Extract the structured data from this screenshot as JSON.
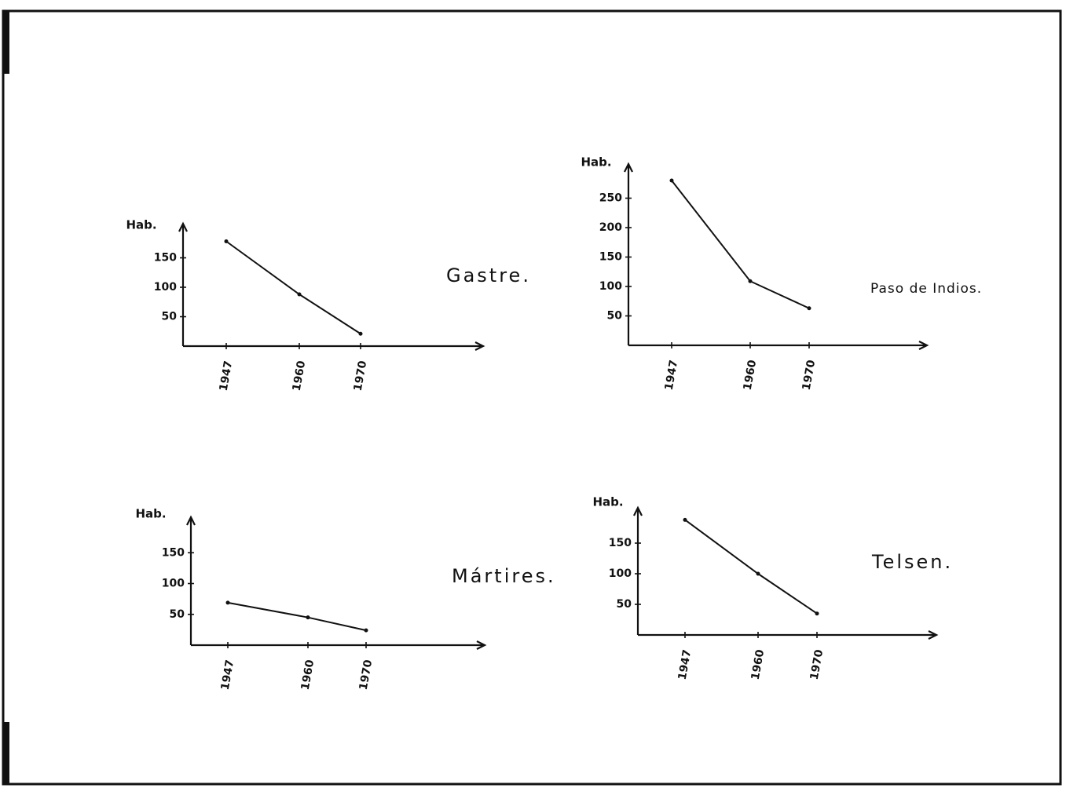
{
  "chart_data": [
    {
      "type": "line",
      "title": "Gastre.",
      "y_label": "Hab.",
      "categories": [
        "1947",
        "1960",
        "1970"
      ],
      "values": [
        178,
        88,
        21
      ],
      "ylim": [
        0,
        200
      ],
      "yticks": [
        50,
        100,
        150
      ],
      "color": "#111111"
    },
    {
      "type": "line",
      "title": "Paso de Indios.",
      "y_label": "Hab.",
      "categories": [
        "1947",
        "1960",
        "1970"
      ],
      "values": [
        280,
        109,
        63
      ],
      "ylim": [
        0,
        300
      ],
      "yticks": [
        50,
        100,
        150,
        200,
        250
      ],
      "color": "#111111"
    },
    {
      "type": "line",
      "title": "Mártires.",
      "y_label": "Hab.",
      "categories": [
        "1947",
        "1960",
        "1970"
      ],
      "values": [
        69,
        45,
        24
      ],
      "ylim": [
        0,
        200
      ],
      "yticks": [
        50,
        100,
        150
      ],
      "color": "#111111"
    },
    {
      "type": "line",
      "title": "Telsen.",
      "y_label": "Hab.",
      "categories": [
        "1947",
        "1960",
        "1970"
      ],
      "values": [
        188,
        100,
        35
      ],
      "ylim": [
        0,
        200
      ],
      "yticks": [
        50,
        100,
        150
      ],
      "color": "#111111"
    }
  ]
}
